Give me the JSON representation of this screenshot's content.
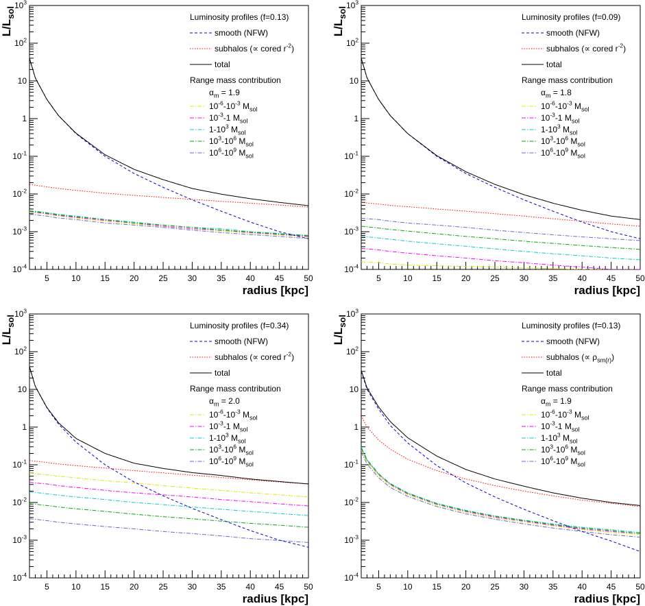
{
  "chart_data": [
    {
      "type": "line",
      "title": "",
      "xlabel": "radius [kpc]",
      "ylabel": "L/L_sol",
      "xlim": [
        2,
        50
      ],
      "ylim": [
        0.0001,
        1000
      ],
      "yscale": "log",
      "x_ticks": [
        "5",
        "10",
        "15",
        "20",
        "25",
        "30",
        "35",
        "40",
        "45",
        "50"
      ],
      "y_ticks": [
        "10^-4",
        "10^-3",
        "10^-2",
        "10^-1",
        "1",
        "10",
        "10^2",
        "10^3"
      ],
      "legend": {
        "header": "Luminosity profiles (f=0.13)",
        "range_header": "Range mass contribution",
        "alpha_label": "α_m = 1.9",
        "placement": "top-right"
      },
      "x": [
        2,
        3,
        5,
        7,
        10,
        15,
        20,
        25,
        30,
        35,
        40,
        45,
        50
      ],
      "series": [
        {
          "name": "smooth (NFW)",
          "color": "#0000cc",
          "dash": "dashed",
          "values": [
            40,
            12,
            3.2,
            1.2,
            0.4,
            0.1,
            0.035,
            0.015,
            0.007,
            0.0035,
            0.0018,
            0.001,
            0.00065
          ]
        },
        {
          "name": "subhalos (∝ cored r^-2)",
          "color": "#ff0000",
          "dash": "dotted",
          "values": [
            0.018,
            0.017,
            0.0155,
            0.014,
            0.0125,
            0.0105,
            0.0092,
            0.0081,
            0.0072,
            0.0064,
            0.0057,
            0.0051,
            0.0045
          ]
        },
        {
          "name": "total",
          "color": "#000000",
          "dash": "solid",
          "values": [
            40,
            12,
            3.2,
            1.2,
            0.41,
            0.11,
            0.045,
            0.024,
            0.014,
            0.0099,
            0.0075,
            0.006,
            0.0049
          ]
        },
        {
          "name": "10^-6-10^-3 M_sol",
          "color": "#e6e600",
          "dash": "dashdot",
          "values": [
            0.0033,
            0.0032,
            0.0029,
            0.0026,
            0.0023,
            0.0019,
            0.0016,
            0.0014,
            0.0012,
            0.00105,
            0.00092,
            0.00082,
            0.00072
          ]
        },
        {
          "name": "10^-3-1 M_sol",
          "color": "#ff00ff",
          "dash": "dashdot",
          "values": [
            0.0034,
            0.0033,
            0.003,
            0.0027,
            0.0024,
            0.002,
            0.0017,
            0.0014,
            0.0012,
            0.0011,
            0.00095,
            0.00085,
            0.00075
          ]
        },
        {
          "name": "1-10^3 M_sol",
          "color": "#00cccc",
          "dash": "dashdot",
          "values": [
            0.0036,
            0.0035,
            0.0032,
            0.0029,
            0.0026,
            0.0021,
            0.0018,
            0.0015,
            0.0013,
            0.0012,
            0.001,
            0.0009,
            0.0008
          ]
        },
        {
          "name": "10^3-10^6 M_sol",
          "color": "#00aa00",
          "dash": "dashdot",
          "values": [
            0.0035,
            0.0034,
            0.0031,
            0.0028,
            0.0025,
            0.0021,
            0.0017,
            0.0015,
            0.0013,
            0.0011,
            0.00098,
            0.00087,
            0.00078
          ]
        },
        {
          "name": "10^6-10^9 M_sol",
          "color": "#6666cc",
          "dash": "dashdot",
          "values": [
            0.0029,
            0.0028,
            0.0026,
            0.0023,
            0.0021,
            0.0017,
            0.0015,
            0.0013,
            0.0011,
            0.00095,
            0.00084,
            0.00075,
            0.00066
          ]
        }
      ]
    },
    {
      "type": "line",
      "title": "",
      "xlabel": "radius [kpc]",
      "ylabel": "L/L_sol",
      "xlim": [
        2,
        50
      ],
      "ylim": [
        0.0001,
        1000
      ],
      "yscale": "log",
      "x_ticks": [
        "5",
        "10",
        "15",
        "20",
        "25",
        "30",
        "35",
        "40",
        "45",
        "50"
      ],
      "y_ticks": [
        "10^-4",
        "10^-3",
        "10^-2",
        "10^-1",
        "1",
        "10",
        "10^2",
        "10^3"
      ],
      "legend": {
        "header": "Luminosity profiles (f=0.09)",
        "range_header": "Range mass contribution",
        "alpha_label": "α_m = 1.8",
        "placement": "top-right"
      },
      "x": [
        2,
        3,
        5,
        7,
        10,
        15,
        20,
        25,
        30,
        35,
        40,
        45,
        50
      ],
      "series": [
        {
          "name": "smooth (NFW)",
          "color": "#0000cc",
          "dash": "dashed",
          "values": [
            40,
            12,
            3.2,
            1.2,
            0.4,
            0.1,
            0.035,
            0.015,
            0.007,
            0.0035,
            0.0018,
            0.001,
            0.00065
          ]
        },
        {
          "name": "subhalos (∝ cored r^-2)",
          "color": "#ff0000",
          "dash": "dotted",
          "values": [
            0.006,
            0.0058,
            0.0054,
            0.005,
            0.0046,
            0.004,
            0.0035,
            0.003,
            0.0026,
            0.0022,
            0.0019,
            0.0016,
            0.0014
          ]
        },
        {
          "name": "total",
          "color": "#000000",
          "dash": "solid",
          "values": [
            40,
            12,
            3.2,
            1.2,
            0.4,
            0.104,
            0.039,
            0.018,
            0.0096,
            0.0057,
            0.0037,
            0.0026,
            0.0021
          ]
        },
        {
          "name": "10^-6-10^-3 M_sol",
          "color": "#e6e600",
          "dash": "dashdot",
          "values": [
            0.00016,
            0.000155,
            0.00015,
            0.00014,
            0.00013,
            0.000125,
            0.00012,
            0.000115,
            0.00011,
            0.000105,
            0.0001,
            0.0001,
            0.0001
          ]
        },
        {
          "name": "10^-3-1 M_sol",
          "color": "#ff00ff",
          "dash": "dashdot",
          "values": [
            0.00036,
            0.00035,
            0.00033,
            0.0003,
            0.00027,
            0.00023,
            0.0002,
            0.00017,
            0.00015,
            0.00013,
            0.000115,
            0.0001,
            0.0001
          ]
        },
        {
          "name": "1-10^3 M_sol",
          "color": "#00cccc",
          "dash": "dashdot",
          "values": [
            0.00075,
            0.00073,
            0.00068,
            0.00063,
            0.00056,
            0.00048,
            0.00041,
            0.00035,
            0.0003,
            0.00026,
            0.00023,
            0.0002,
            0.00018
          ]
        },
        {
          "name": "10^3-10^6 M_sol",
          "color": "#00aa00",
          "dash": "dashdot",
          "values": [
            0.0014,
            0.00135,
            0.00125,
            0.00115,
            0.00104,
            0.00088,
            0.00075,
            0.00065,
            0.00056,
            0.00049,
            0.00043,
            0.00038,
            0.00034
          ]
        },
        {
          "name": "10^6-10^9 M_sol",
          "color": "#6666cc",
          "dash": "dashdot",
          "values": [
            0.0023,
            0.0022,
            0.0021,
            0.0019,
            0.0017,
            0.0015,
            0.0013,
            0.0011,
            0.00095,
            0.00083,
            0.00073,
            0.00065,
            0.00058
          ]
        }
      ]
    },
    {
      "type": "line",
      "title": "",
      "xlabel": "radius [kpc]",
      "ylabel": "L/L_sol",
      "xlim": [
        2,
        50
      ],
      "ylim": [
        0.0001,
        1000
      ],
      "yscale": "log",
      "x_ticks": [
        "5",
        "10",
        "15",
        "20",
        "25",
        "30",
        "35",
        "40",
        "45",
        "50"
      ],
      "y_ticks": [
        "10^-4",
        "10^-3",
        "10^-2",
        "10^-1",
        "1",
        "10",
        "10^2",
        "10^3"
      ],
      "legend": {
        "header": "Luminosity profiles (f=0.34)",
        "range_header": "Range mass contribution",
        "alpha_label": "α_m = 2.0",
        "placement": "top-right"
      },
      "x": [
        2,
        3,
        5,
        7,
        10,
        15,
        20,
        25,
        30,
        35,
        40,
        45,
        50
      ],
      "series": [
        {
          "name": "smooth (NFW)",
          "color": "#0000cc",
          "dash": "dashed",
          "values": [
            40,
            12,
            3.2,
            1.2,
            0.4,
            0.1,
            0.035,
            0.015,
            0.007,
            0.0035,
            0.0018,
            0.001,
            0.00065
          ]
        },
        {
          "name": "subhalos (∝ cored r^-2)",
          "color": "#ff0000",
          "dash": "dotted",
          "values": [
            0.13,
            0.125,
            0.115,
            0.105,
            0.095,
            0.082,
            0.07,
            0.061,
            0.053,
            0.046,
            0.04,
            0.035,
            0.031
          ]
        },
        {
          "name": "total",
          "color": "#000000",
          "dash": "solid",
          "values": [
            40,
            12,
            3.3,
            1.3,
            0.5,
            0.2,
            0.11,
            0.08,
            0.062,
            0.052,
            0.042,
            0.036,
            0.031
          ]
        },
        {
          "name": "10^-6-10^-3 M_sol",
          "color": "#e6e600",
          "dash": "dashdot",
          "values": [
            0.06,
            0.058,
            0.054,
            0.05,
            0.045,
            0.038,
            0.033,
            0.028,
            0.024,
            0.021,
            0.018,
            0.016,
            0.014
          ]
        },
        {
          "name": "10^-3-1 M_sol",
          "color": "#ff00ff",
          "dash": "dashdot",
          "values": [
            0.034,
            0.033,
            0.031,
            0.028,
            0.025,
            0.021,
            0.018,
            0.016,
            0.014,
            0.012,
            0.0105,
            0.0092,
            0.0081
          ]
        },
        {
          "name": "1-10^3 M_sol",
          "color": "#00cccc",
          "dash": "dashdot",
          "values": [
            0.019,
            0.0185,
            0.017,
            0.0156,
            0.014,
            0.012,
            0.01,
            0.0088,
            0.0076,
            0.0066,
            0.0058,
            0.0051,
            0.0045
          ]
        },
        {
          "name": "10^3-10^6 M_sol",
          "color": "#00aa00",
          "dash": "dashdot",
          "values": [
            0.0092,
            0.009,
            0.0083,
            0.0076,
            0.0068,
            0.0058,
            0.0049,
            0.0042,
            0.0037,
            0.0032,
            0.0028,
            0.0025,
            0.0022
          ]
        },
        {
          "name": "10^6-10^9 M_sol",
          "color": "#6666cc",
          "dash": "dashdot",
          "values": [
            0.0037,
            0.0036,
            0.0033,
            0.003,
            0.0027,
            0.0023,
            0.002,
            0.0017,
            0.0015,
            0.0013,
            0.0011,
            0.00098,
            0.00087
          ]
        }
      ]
    },
    {
      "type": "line",
      "title": "",
      "xlabel": "radius [kpc]",
      "ylabel": "L/L_sol",
      "xlim": [
        2,
        50
      ],
      "ylim": [
        0.0001,
        1000
      ],
      "yscale": "log",
      "x_ticks": [
        "5",
        "10",
        "15",
        "20",
        "25",
        "30",
        "35",
        "40",
        "45",
        "50"
      ],
      "y_ticks": [
        "10^-4",
        "10^-3",
        "10^-2",
        "10^-1",
        "1",
        "10",
        "10^2",
        "10^3"
      ],
      "legend": {
        "header": "Luminosity profiles (f=0.13)",
        "range_header": "Range mass contribution",
        "alpha_label": "α_m = 1.9",
        "placement": "top-right"
      },
      "x": [
        2,
        3,
        5,
        7,
        10,
        15,
        20,
        25,
        30,
        35,
        40,
        45,
        50
      ],
      "series": [
        {
          "name": "smooth (NFW)",
          "color": "#0000cc",
          "dash": "dashed",
          "values": [
            30,
            10,
            3,
            1.1,
            0.38,
            0.095,
            0.033,
            0.014,
            0.0066,
            0.0033,
            0.0017,
            0.00095,
            0.0005
          ]
        },
        {
          "name": "subhalos (∝ ρ_sm(r))",
          "color": "#ff0000",
          "dash": "dotted",
          "values": [
            2.0,
            1.0,
            0.45,
            0.26,
            0.14,
            0.07,
            0.042,
            0.028,
            0.02,
            0.015,
            0.0115,
            0.0095,
            0.0078
          ]
        },
        {
          "name": "total",
          "color": "#000000",
          "dash": "solid",
          "values": [
            32,
            11,
            3.4,
            1.4,
            0.52,
            0.17,
            0.075,
            0.042,
            0.027,
            0.018,
            0.013,
            0.01,
            0.0083
          ]
        },
        {
          "name": "10^-6-10^-3 M_sol",
          "color": "#e6e600",
          "dash": "dashdot",
          "values": [
            0.25,
            0.12,
            0.05,
            0.028,
            0.016,
            0.0085,
            0.0055,
            0.0039,
            0.003,
            0.0024,
            0.0019,
            0.0016,
            0.0014
          ]
        },
        {
          "name": "10^-3-1 M_sol",
          "color": "#ff00ff",
          "dash": "dashdot",
          "values": [
            0.27,
            0.13,
            0.055,
            0.03,
            0.017,
            0.009,
            0.0058,
            0.0041,
            0.0032,
            0.0025,
            0.002,
            0.0017,
            0.0015
          ]
        },
        {
          "name": "1-10^3 M_sol",
          "color": "#00cccc",
          "dash": "dashdot",
          "values": [
            0.3,
            0.14,
            0.058,
            0.032,
            0.018,
            0.0095,
            0.0062,
            0.0044,
            0.0034,
            0.0027,
            0.0022,
            0.0019,
            0.0016
          ]
        },
        {
          "name": "10^3-10^6 M_sol",
          "color": "#00aa00",
          "dash": "dashdot",
          "values": [
            0.28,
            0.13,
            0.056,
            0.031,
            0.0175,
            0.0092,
            0.006,
            0.0043,
            0.0033,
            0.0026,
            0.0021,
            0.0018,
            0.0015
          ]
        },
        {
          "name": "10^6-10^9 M_sol",
          "color": "#6666cc",
          "dash": "dashdot",
          "values": [
            0.22,
            0.105,
            0.045,
            0.025,
            0.0145,
            0.0078,
            0.005,
            0.0036,
            0.0027,
            0.0021,
            0.0017,
            0.0014,
            0.0012
          ]
        }
      ]
    }
  ]
}
